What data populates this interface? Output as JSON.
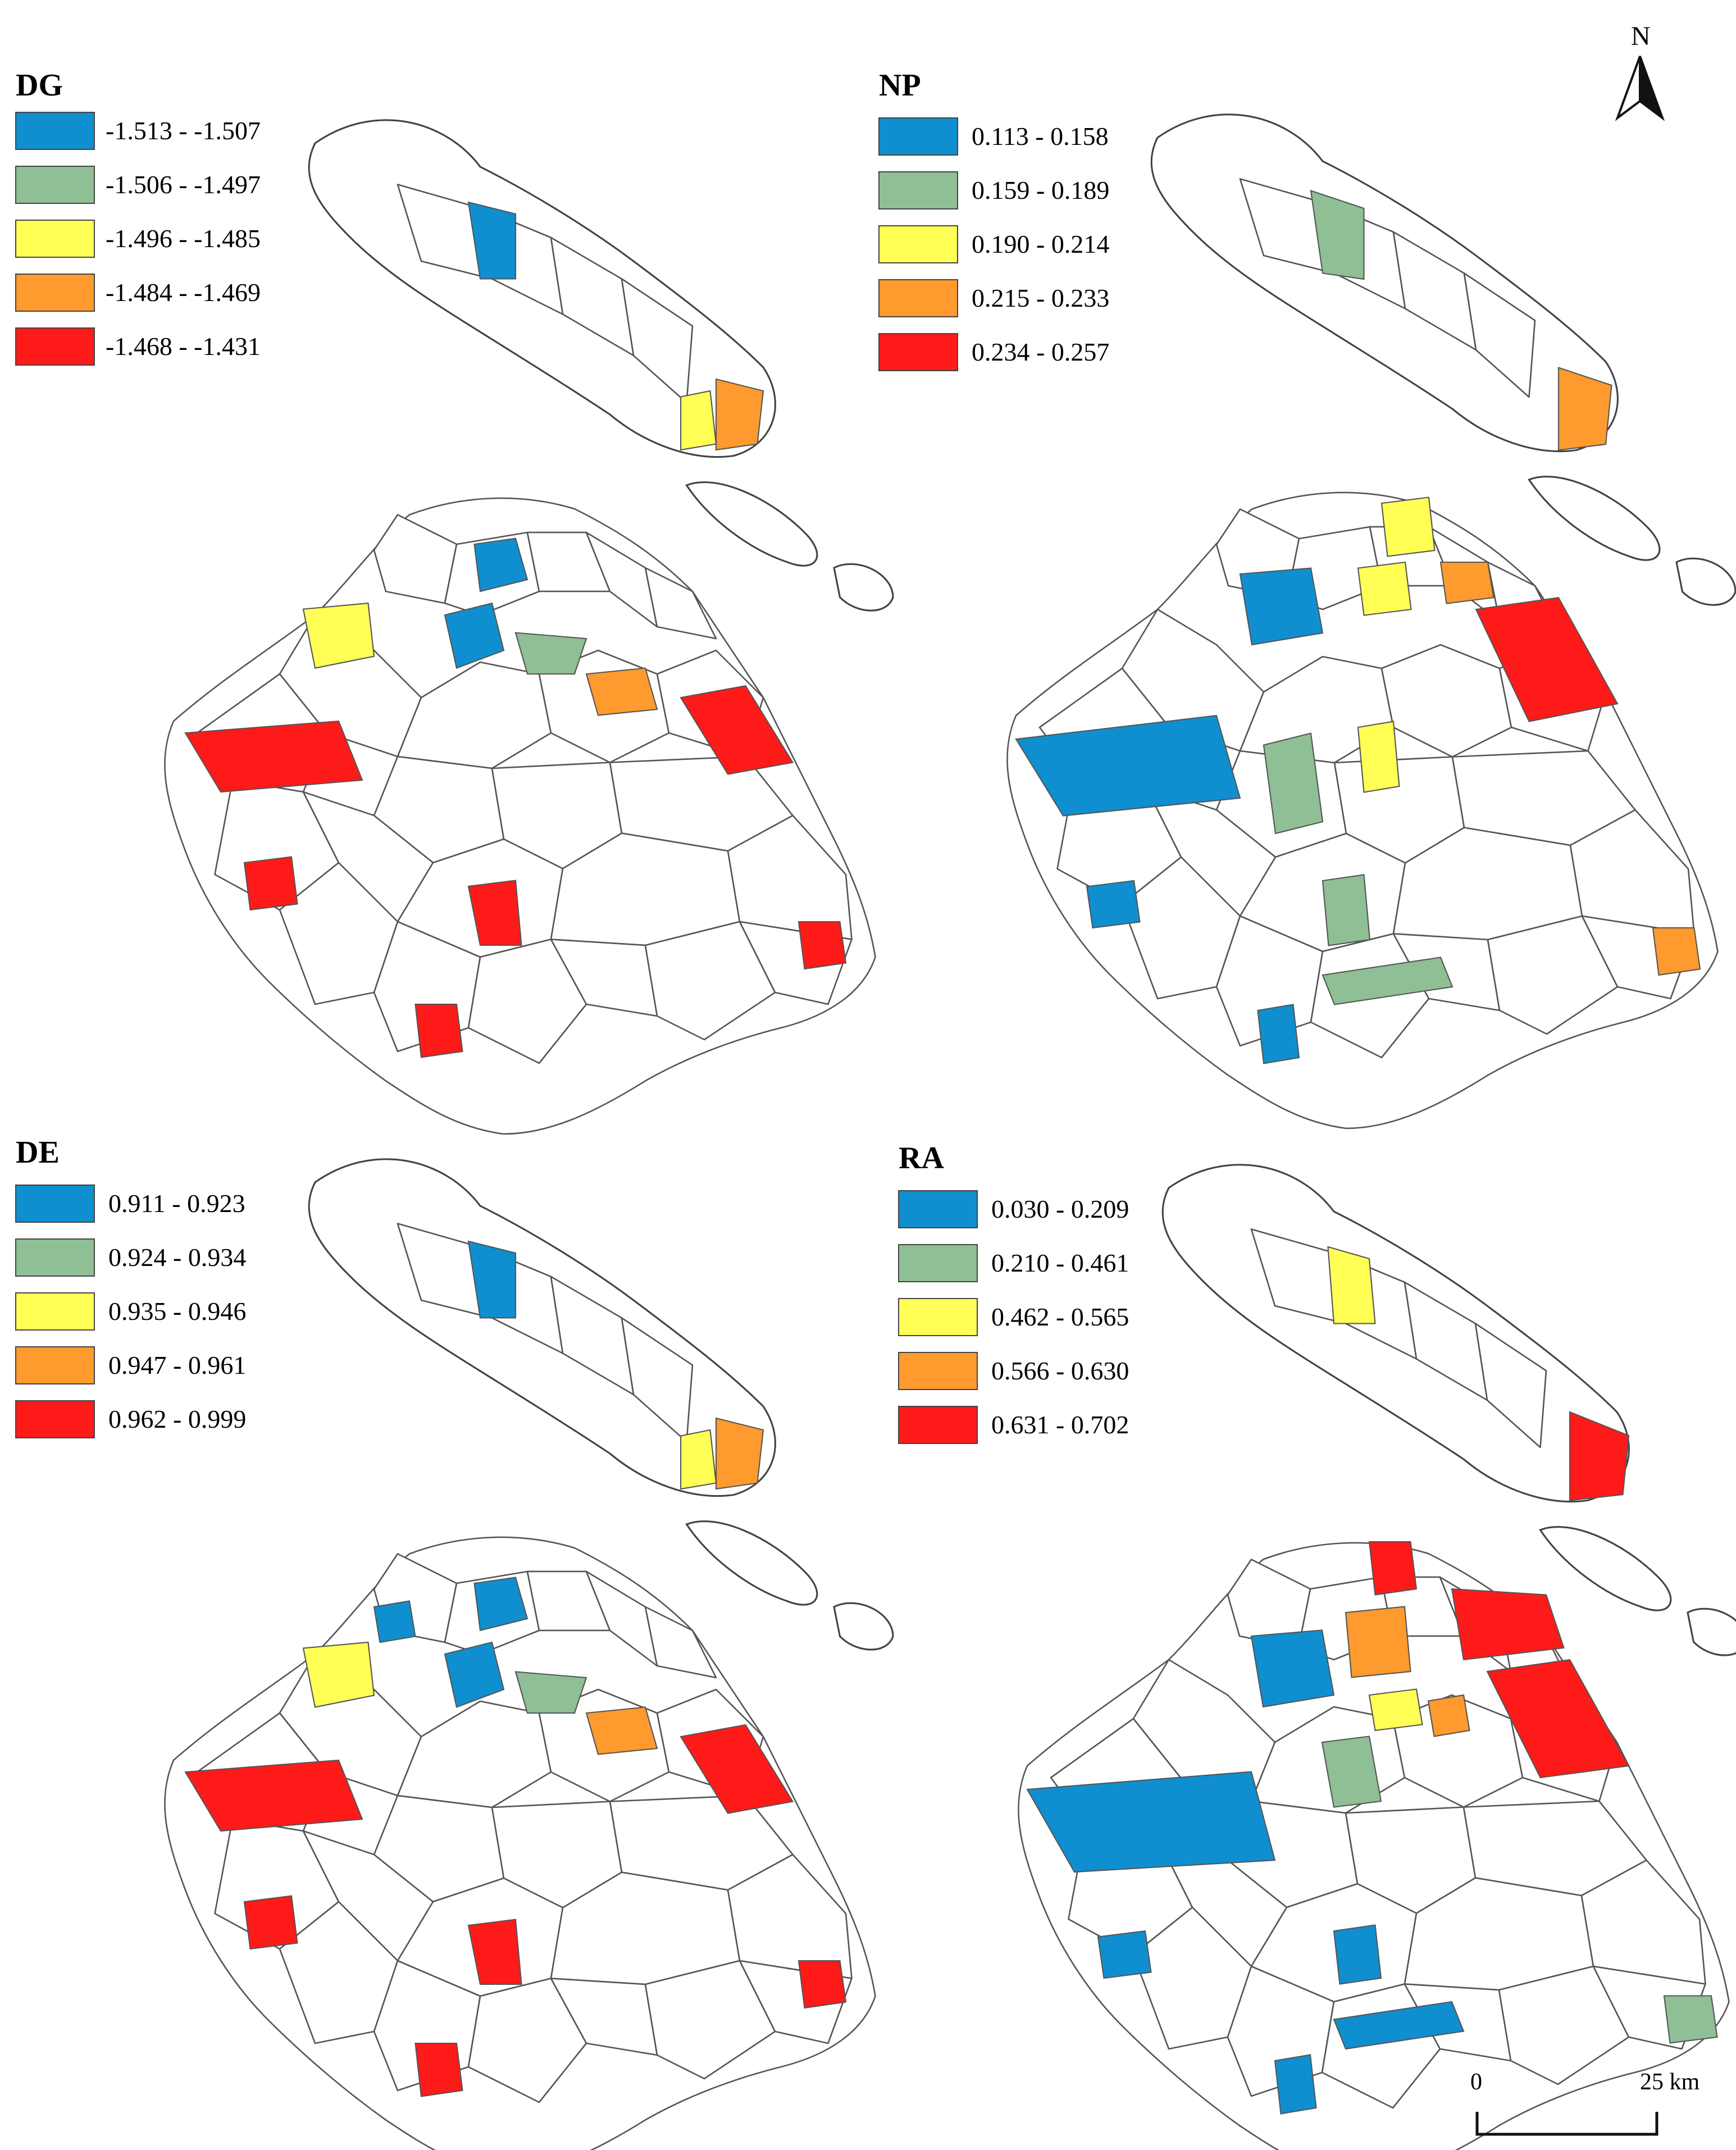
{
  "colors": {
    "class1": "#0f8fcf",
    "class2": "#8fbf95",
    "class3": "#ffff55",
    "class4": "#ff9a2e",
    "class5": "#ff1a1a",
    "boundary": "#555555",
    "background": "#ffffff"
  },
  "panels": [
    {
      "id": "DG",
      "title": "DG",
      "legend": [
        {
          "label": "-1.513 - -1.507",
          "color": "#0f8fcf"
        },
        {
          "label": "-1.506 - -1.497",
          "color": "#8fbf95"
        },
        {
          "label": "-1.496 - -1.485",
          "color": "#ffff55"
        },
        {
          "label": "-1.484 - -1.469",
          "color": "#ff9a2e"
        },
        {
          "label": "-1.468 - -1.431",
          "color": "#ff1a1a"
        }
      ]
    },
    {
      "id": "NP",
      "title": "NP",
      "legend": [
        {
          "label": "0.113 - 0.158",
          "color": "#0f8fcf"
        },
        {
          "label": "0.159 - 0.189",
          "color": "#8fbf95"
        },
        {
          "label": "0.190 - 0.214",
          "color": "#ffff55"
        },
        {
          "label": "0.215 - 0.233",
          "color": "#ff9a2e"
        },
        {
          "label": "0.234 - 0.257",
          "color": "#ff1a1a"
        }
      ]
    },
    {
      "id": "DE",
      "title": "DE",
      "legend": [
        {
          "label": "0.911 - 0.923",
          "color": "#0f8fcf"
        },
        {
          "label": "0.924 - 0.934",
          "color": "#8fbf95"
        },
        {
          "label": "0.935 - 0.946",
          "color": "#ffff55"
        },
        {
          "label": "0.947 - 0.961",
          "color": "#ff9a2e"
        },
        {
          "label": "0.962 - 0.999",
          "color": "#ff1a1a"
        }
      ]
    },
    {
      "id": "RA",
      "title": "RA",
      "legend": [
        {
          "label": "0.030 - 0.209",
          "color": "#0f8fcf"
        },
        {
          "label": "0.210 - 0.461",
          "color": "#8fbf95"
        },
        {
          "label": "0.462 - 0.565",
          "color": "#ffff55"
        },
        {
          "label": "0.566 - 0.630",
          "color": "#ff9a2e"
        },
        {
          "label": "0.631 - 0.702",
          "color": "#ff1a1a"
        }
      ]
    }
  ],
  "north_arrow": {
    "label": "N",
    "icon": "north-arrow-icon"
  },
  "scale_bar": {
    "start_label": "0",
    "end_label": "25 km",
    "icon": "scale-bar-icon"
  }
}
